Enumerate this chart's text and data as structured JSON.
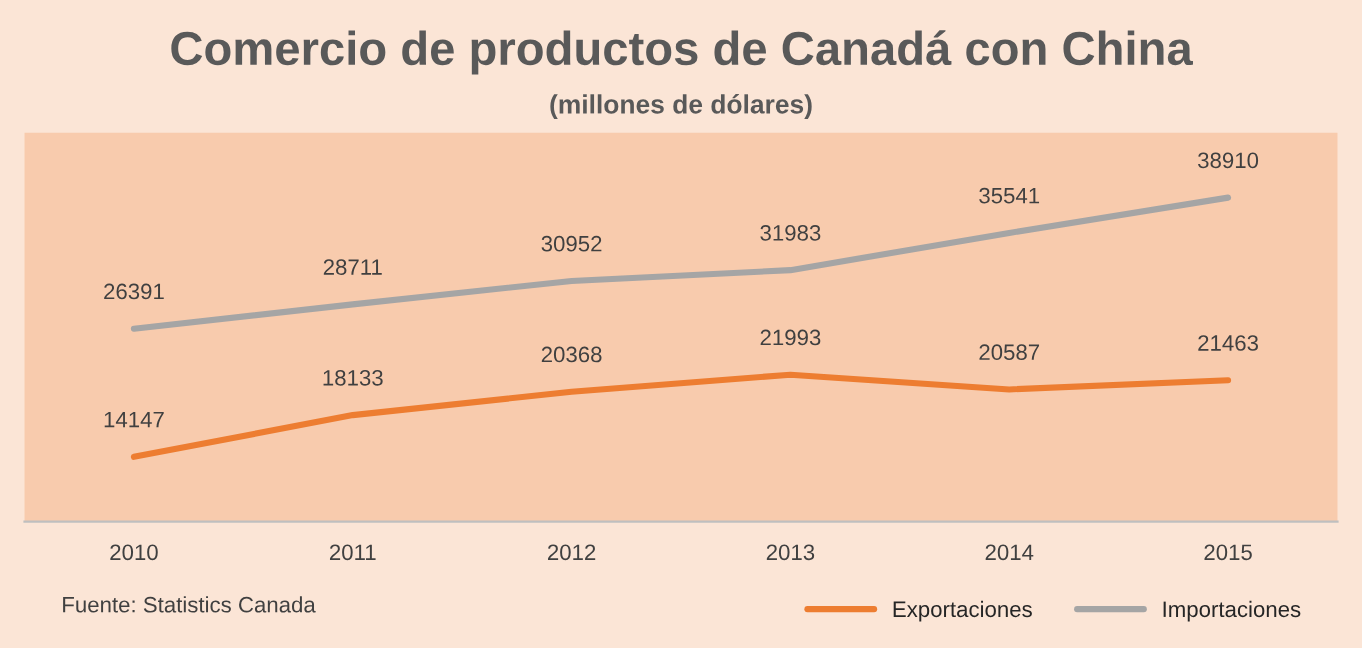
{
  "chart_data": {
    "type": "line",
    "title": "Comercio de productos de Canadá con China",
    "subtitle": "(millones de dólares)",
    "categories": [
      "2010",
      "2011",
      "2012",
      "2013",
      "2014",
      "2015"
    ],
    "series": [
      {
        "name": "Exportaciones",
        "color": "#ed7d31",
        "values": [
          14147,
          18133,
          20368,
          21993,
          20587,
          21463
        ]
      },
      {
        "name": "Importaciones",
        "color": "#a5a5a5",
        "values": [
          26391,
          28711,
          30952,
          31983,
          35541,
          38910
        ]
      }
    ],
    "data_labels": true,
    "grid": false,
    "legend": "bottom right",
    "marker": "none",
    "line_style": "solid",
    "annotations": [
      "Fuente: Statistics Canada"
    ]
  }
}
